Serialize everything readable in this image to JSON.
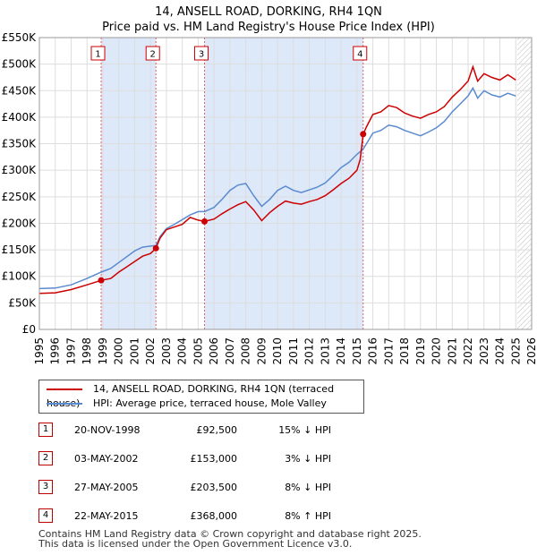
{
  "title": {
    "line1": "14, ANSELL ROAD, DORKING, RH4 1QN",
    "line2": "Price paid vs. HM Land Registry's House Price Index (HPI)"
  },
  "colors": {
    "property": "#cc0000",
    "hpi": "#5a8ad0",
    "shade": "#dde8f8",
    "grid": "#dddddd",
    "marker_border": "#cc0000"
  },
  "chart_data": {
    "type": "line",
    "title": "Price paid vs. HM Land Registry's House Price Index (HPI)",
    "xlabel": "",
    "ylabel": "",
    "xlim": [
      1995,
      2026
    ],
    "ylim": [
      0,
      550000
    ],
    "y_ticks": [
      0,
      50000,
      100000,
      150000,
      200000,
      250000,
      300000,
      350000,
      400000,
      450000,
      500000,
      550000
    ],
    "y_tick_labels": [
      "£0",
      "£50K",
      "£100K",
      "£150K",
      "£200K",
      "£250K",
      "£300K",
      "£350K",
      "£400K",
      "£450K",
      "£500K",
      "£550K"
    ],
    "x_ticks": [
      1995,
      1996,
      1997,
      1998,
      1999,
      2000,
      2001,
      2002,
      2003,
      2004,
      2005,
      2006,
      2007,
      2008,
      2009,
      2010,
      2011,
      2012,
      2013,
      2014,
      2015,
      2016,
      2017,
      2018,
      2019,
      2020,
      2021,
      2022,
      2023,
      2024,
      2025,
      2026
    ],
    "grid": true,
    "shaded_ranges": [
      [
        1998.89,
        2002.34
      ],
      [
        2005.4,
        2015.39
      ]
    ],
    "future_hatch_from": 2025.1,
    "series": [
      {
        "name": "14, ANSELL ROAD, DORKING, RH4 1QN (terraced house)",
        "x": [
          1995,
          1996,
          1997,
          1998,
          1998.89,
          1999.5,
          2000,
          2000.5,
          2001,
          2001.5,
          2002,
          2002.34,
          2002.6,
          2003,
          2003.5,
          2004,
          2004.5,
          2005,
          2005.4,
          2006,
          2006.5,
          2007,
          2007.5,
          2008,
          2008.5,
          2009,
          2009.5,
          2010,
          2010.5,
          2011,
          2011.5,
          2012,
          2012.5,
          2013,
          2013.5,
          2014,
          2014.5,
          2015,
          2015.2,
          2015.39,
          2015.6,
          2016,
          2016.5,
          2017,
          2017.5,
          2018,
          2018.5,
          2019,
          2019.5,
          2020,
          2020.5,
          2021,
          2021.5,
          2022,
          2022.3,
          2022.6,
          2023,
          2023.5,
          2024,
          2024.5,
          2025
        ],
        "values": [
          68000,
          69000,
          75000,
          84000,
          92500,
          96000,
          108000,
          118000,
          128000,
          138000,
          143000,
          153000,
          172000,
          188000,
          193000,
          198000,
          211000,
          206000,
          203500,
          208000,
          218000,
          227000,
          235000,
          241000,
          225000,
          205000,
          220000,
          232000,
          242000,
          238000,
          236000,
          241000,
          245000,
          252000,
          263000,
          275000,
          285000,
          300000,
          320000,
          368000,
          382000,
          405000,
          410000,
          422000,
          418000,
          408000,
          402000,
          398000,
          405000,
          410000,
          420000,
          438000,
          452000,
          468000,
          495000,
          468000,
          482000,
          475000,
          470000,
          480000,
          470000
        ]
      },
      {
        "name": "HPI: Average price, terraced house, Mole Valley",
        "x": [
          1995,
          1996,
          1997,
          1998,
          1998.89,
          1999.5,
          2000,
          2000.5,
          2001,
          2001.5,
          2002,
          2002.34,
          2002.6,
          2003,
          2003.5,
          2004,
          2004.5,
          2005,
          2005.4,
          2006,
          2006.5,
          2007,
          2007.5,
          2008,
          2008.5,
          2009,
          2009.5,
          2010,
          2010.5,
          2011,
          2011.5,
          2012,
          2012.5,
          2013,
          2013.5,
          2014,
          2014.5,
          2015,
          2015.2,
          2015.39,
          2015.6,
          2016,
          2016.5,
          2017,
          2017.5,
          2018,
          2018.5,
          2019,
          2019.5,
          2020,
          2020.5,
          2021,
          2021.5,
          2022,
          2022.3,
          2022.6,
          2023,
          2023.5,
          2024,
          2024.5,
          2025
        ],
        "values": [
          77000,
          78000,
          84000,
          96000,
          108000,
          115000,
          126000,
          137000,
          148000,
          155000,
          157000,
          158000,
          175000,
          190000,
          198000,
          207000,
          216000,
          222000,
          222000,
          230000,
          245000,
          262000,
          272000,
          275000,
          252000,
          232000,
          245000,
          262000,
          270000,
          262000,
          258000,
          263000,
          268000,
          276000,
          290000,
          305000,
          315000,
          330000,
          335000,
          340000,
          350000,
          370000,
          375000,
          385000,
          382000,
          375000,
          370000,
          365000,
          372000,
          380000,
          392000,
          410000,
          425000,
          440000,
          455000,
          436000,
          450000,
          442000,
          438000,
          445000,
          440000
        ]
      }
    ],
    "sale_markers": [
      {
        "label": "1",
        "x": 1998.89,
        "value": 92500
      },
      {
        "label": "2",
        "x": 2002.34,
        "value": 153000
      },
      {
        "label": "3",
        "x": 2005.4,
        "value": 203500
      },
      {
        "label": "4",
        "x": 2015.39,
        "value": 368000
      }
    ]
  },
  "legend": {
    "items": [
      {
        "label": "14, ANSELL ROAD, DORKING, RH4 1QN (terraced house)"
      },
      {
        "label": "HPI: Average price, terraced house, Mole Valley"
      }
    ]
  },
  "sales": [
    {
      "num": "1",
      "date": "20-NOV-1998",
      "price": "£92,500",
      "hpi": "15% ↓ HPI"
    },
    {
      "num": "2",
      "date": "03-MAY-2002",
      "price": "£153,000",
      "hpi": "3% ↓ HPI"
    },
    {
      "num": "3",
      "date": "27-MAY-2005",
      "price": "£203,500",
      "hpi": "8% ↓ HPI"
    },
    {
      "num": "4",
      "date": "22-MAY-2015",
      "price": "£368,000",
      "hpi": "8% ↑ HPI"
    }
  ],
  "footer": {
    "line1": "Contains HM Land Registry data © Crown copyright and database right 2025.",
    "line2": "This data is licensed under the Open Government Licence v3.0."
  }
}
